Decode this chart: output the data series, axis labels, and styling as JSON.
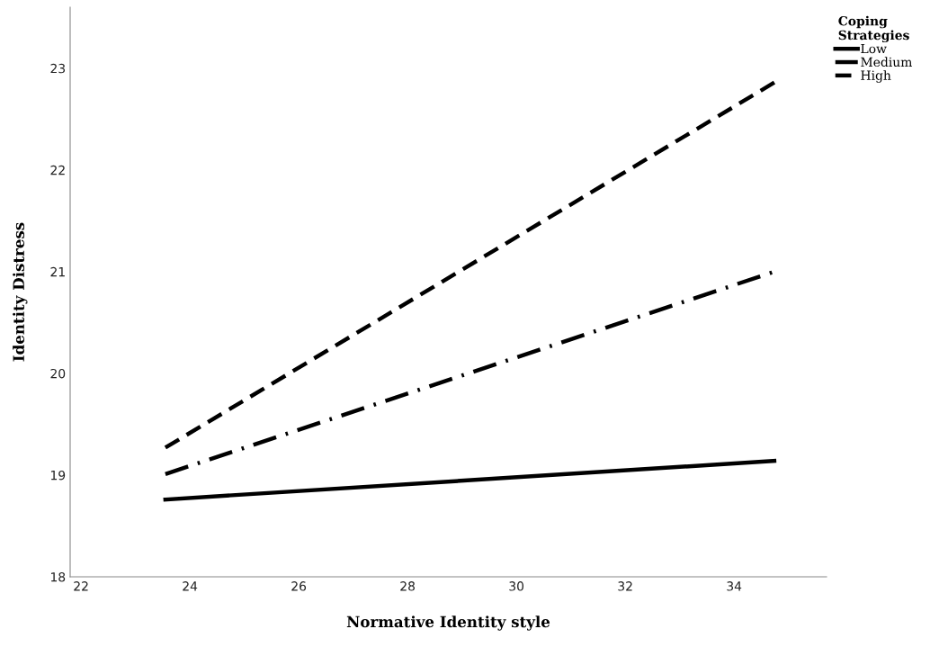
{
  "chart_data": {
    "type": "line",
    "xlabel": "Normative Identity style",
    "ylabel": "Identity Distress",
    "legend_title": "Coping\nStrategies",
    "x": [
      23.55,
      34.74
    ],
    "series": [
      {
        "name": "Low",
        "color": "#000000",
        "values": [
          18.76,
          19.14
        ],
        "line_style": "solid"
      },
      {
        "name": "Medium",
        "color": "#000000",
        "values": [
          19.01,
          21.0
        ],
        "line_style": "dashdot"
      },
      {
        "name": "High",
        "color": "#000000",
        "values": [
          19.27,
          22.86
        ],
        "line_style": "dashed"
      }
    ],
    "xlim": [
      21.8,
      35.7
    ],
    "ylim": [
      18,
      23.6
    ],
    "xticks": [
      22,
      24,
      26,
      28,
      30,
      32,
      34
    ],
    "yticks": [
      18,
      19,
      20,
      21,
      22,
      23
    ],
    "grid": false,
    "legend": "top right",
    "marker": "none"
  }
}
